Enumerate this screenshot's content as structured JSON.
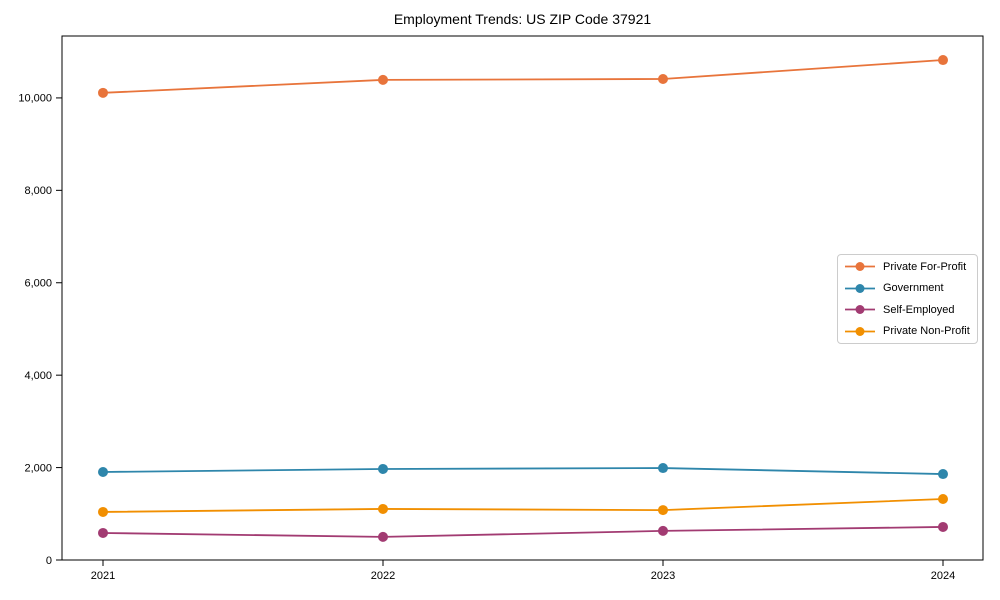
{
  "chart_data": {
    "type": "line",
    "title": "Employment Trends: US ZIP Code 37921",
    "xlabel": "",
    "ylabel": "",
    "categories": [
      "2021",
      "2022",
      "2023",
      "2024"
    ],
    "series": [
      {
        "name": "Private For-Profit",
        "color": "#E8743B",
        "values": [
          10110,
          10390,
          10410,
          10820
        ]
      },
      {
        "name": "Government",
        "color": "#2E86AB",
        "values": [
          1905,
          1970,
          1990,
          1860
        ]
      },
      {
        "name": "Self-Employed",
        "color": "#A23B72",
        "values": [
          585,
          500,
          630,
          715
        ]
      },
      {
        "name": "Private Non-Profit",
        "color": "#F18F01",
        "values": [
          1040,
          1105,
          1080,
          1320
        ]
      }
    ],
    "ylim": [
      0,
      11340
    ],
    "yticks": [
      0,
      2000,
      4000,
      6000,
      8000,
      10000
    ],
    "ytick_labels": [
      "0",
      "2,000",
      "4,000",
      "6,000",
      "8,000",
      "10,000"
    ],
    "grid": false,
    "legend_position": "center right",
    "axis_color": "#000000"
  }
}
